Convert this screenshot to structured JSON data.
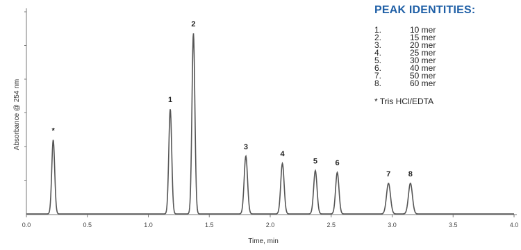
{
  "chart_data": {
    "type": "line",
    "xlabel": "Time, min",
    "ylabel": "Absorbance @ 254 nm",
    "xlim": [
      0.0,
      4.0
    ],
    "ylim": [
      0,
      1.0
    ],
    "x_ticks": [
      "0.0",
      "0.5",
      "1.0",
      "1.5",
      "2.0",
      "2.5",
      "3.0",
      "3.5",
      "4.0"
    ],
    "grid": false,
    "line_color": "#555555",
    "peaks": [
      {
        "label": "*",
        "time": 0.22,
        "height": 0.41
      },
      {
        "label": "1",
        "time": 1.18,
        "height": 0.58
      },
      {
        "label": "2",
        "time": 1.37,
        "height": 1.0
      },
      {
        "label": "3",
        "time": 1.8,
        "height": 0.32
      },
      {
        "label": "4",
        "time": 2.1,
        "height": 0.28
      },
      {
        "label": "5",
        "time": 2.37,
        "height": 0.24
      },
      {
        "label": "6",
        "time": 2.55,
        "height": 0.23
      },
      {
        "label": "7",
        "time": 2.97,
        "height": 0.17
      },
      {
        "label": "8",
        "time": 3.15,
        "height": 0.17
      }
    ]
  },
  "legend_panel": {
    "title": "PEAK IDENTITIES:",
    "title_color": "#1f5fa6",
    "items": [
      {
        "num": "1.",
        "name": "10 mer"
      },
      {
        "num": "2.",
        "name": "15 mer"
      },
      {
        "num": "3.",
        "name": "20 mer"
      },
      {
        "num": "4.",
        "name": "25 mer"
      },
      {
        "num": "5.",
        "name": "30 mer"
      },
      {
        "num": "6.",
        "name": "40 mer"
      },
      {
        "num": "7.",
        "name": "50 mer"
      },
      {
        "num": "8.",
        "name": "60 mer"
      }
    ],
    "footnote": "* Tris HCl/EDTA"
  }
}
